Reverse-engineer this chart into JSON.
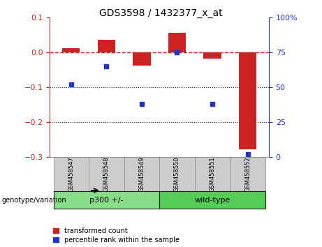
{
  "title": "GDS3598 / 1432377_x_at",
  "samples": [
    "GSM458547",
    "GSM458548",
    "GSM458549",
    "GSM458550",
    "GSM458551",
    "GSM458552"
  ],
  "transformed_count": [
    0.012,
    0.035,
    -0.038,
    0.055,
    -0.018,
    -0.278
  ],
  "percentile_rank": [
    52,
    65,
    38,
    75,
    38,
    2
  ],
  "bar_color": "#cc2222",
  "dot_color": "#2233cc",
  "left_ylim": [
    -0.3,
    0.1
  ],
  "right_ylim": [
    0,
    100
  ],
  "left_yticks": [
    -0.3,
    -0.2,
    -0.1,
    0.0,
    0.1
  ],
  "right_yticks": [
    0,
    25,
    50,
    75,
    100
  ],
  "groups": [
    {
      "label": "p300 +/-",
      "indices": [
        0,
        1,
        2
      ],
      "color": "#88dd88"
    },
    {
      "label": "wild-type",
      "indices": [
        3,
        4,
        5
      ],
      "color": "#55cc55"
    }
  ],
  "group_label": "genotype/variation",
  "legend_red": "transformed count",
  "legend_blue": "percentile rank within the sample",
  "hline_color": "#cc2222",
  "dotted_line_color": "#111111",
  "bg_color": "#ffffff",
  "tick_label_color_left": "#cc2222",
  "tick_label_color_right": "#2233cc",
  "bar_width": 0.5,
  "label_box_color": "#cccccc",
  "label_box_edge": "#888888"
}
